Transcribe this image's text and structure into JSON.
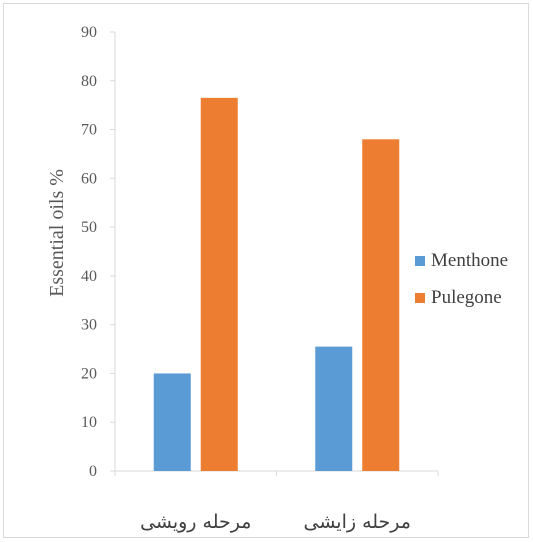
{
  "chart_data": {
    "type": "bar",
    "categories": [
      "مرحله رویشی",
      "مرحله زایشی"
    ],
    "series": [
      {
        "name": "Menthone",
        "values": [
          20,
          25.5
        ],
        "color": "#5b9bd5"
      },
      {
        "name": "Pulegone",
        "values": [
          76.5,
          68
        ],
        "color": "#ed7d31"
      }
    ],
    "xlabel": "",
    "ylabel": "Essential oils %",
    "ylim": [
      0,
      90
    ],
    "yticks": [
      0,
      10,
      20,
      30,
      40,
      50,
      60,
      70,
      80,
      90
    ],
    "grid": false,
    "legend_position": "right"
  }
}
